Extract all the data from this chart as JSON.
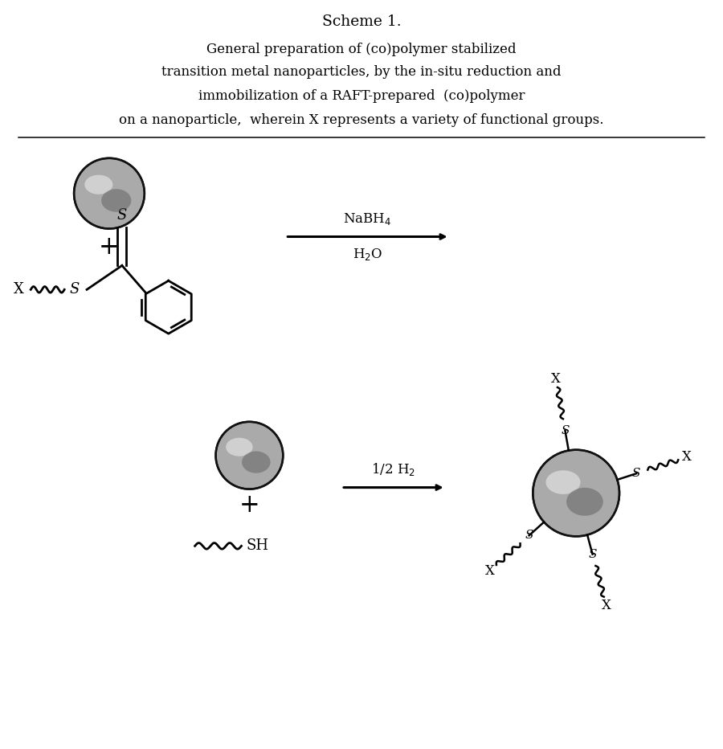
{
  "title_line1": "Scheme 1.",
  "title_line2": "General preparation of (co)polymer stabilized",
  "title_line3": "transition metal nanoparticles, by the in-situ reduction and",
  "title_line4": "immobilization of a RAFT-prepared  (co)polymer",
  "title_line5": "on a nanoparticle,  wherein X represents a variety of functional groups.",
  "bg_color": "#ffffff",
  "text_color": "#000000",
  "fig_width": 9.0,
  "fig_height": 9.32
}
